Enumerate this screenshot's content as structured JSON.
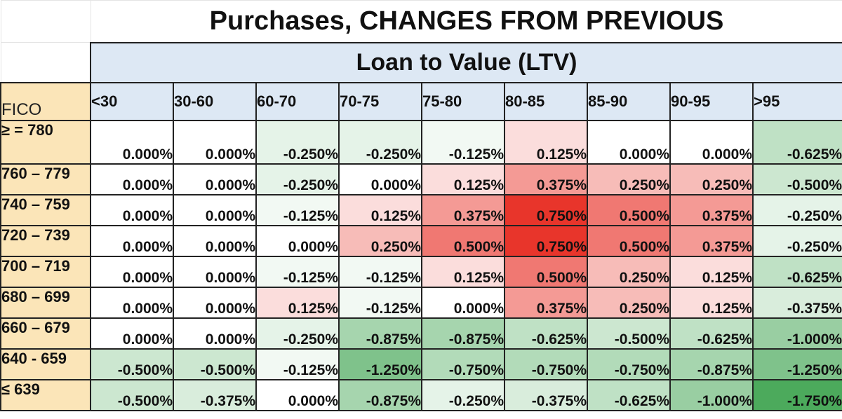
{
  "title": "Purchases, CHANGES FROM PREVIOUS",
  "subtitle": "Loan to Value (LTV)",
  "fico_label": "FICO",
  "columns": [
    "<30",
    "30-60",
    "60-70",
    "70-75",
    "75-80",
    "80-85",
    "85-90",
    "90-95",
    ">95"
  ],
  "rows": [
    {
      "label": "≥ = 780",
      "values": [
        0.0,
        0.0,
        -0.25,
        -0.25,
        -0.125,
        0.125,
        0.0,
        0.0,
        -0.625
      ]
    },
    {
      "label": "760 – 779",
      "values": [
        0.0,
        0.0,
        -0.25,
        0.0,
        0.125,
        0.375,
        0.25,
        0.25,
        -0.5
      ]
    },
    {
      "label": "740 – 759",
      "values": [
        0.0,
        0.0,
        -0.125,
        0.125,
        0.375,
        0.75,
        0.5,
        0.375,
        -0.25
      ]
    },
    {
      "label": "720 – 739",
      "values": [
        0.0,
        0.0,
        0.0,
        0.25,
        0.5,
        0.75,
        0.5,
        0.375,
        -0.25
      ]
    },
    {
      "label": "700 – 719",
      "values": [
        0.0,
        0.0,
        -0.125,
        -0.125,
        0.125,
        0.5,
        0.25,
        0.125,
        -0.625
      ]
    },
    {
      "label": "680 – 699",
      "values": [
        0.0,
        0.0,
        0.125,
        -0.125,
        0.0,
        0.375,
        0.25,
        0.125,
        -0.375
      ]
    },
    {
      "label": "660 – 679",
      "values": [
        0.0,
        0.0,
        -0.25,
        -0.875,
        -0.875,
        -0.625,
        -0.5,
        -0.625,
        -1.0
      ]
    },
    {
      "label": "640 - 659",
      "values": [
        -0.5,
        -0.5,
        -0.125,
        -1.25,
        -0.75,
        -0.75,
        -0.75,
        -0.875,
        -1.25
      ]
    },
    {
      "label": "≤ 639",
      "values": [
        -0.5,
        -0.375,
        0.0,
        -0.875,
        -0.25,
        -0.375,
        -0.625,
        -1.0,
        -1.75
      ]
    }
  ],
  "colors": {
    "positive_max": "#e8352b",
    "negative_max": "#4caa5c",
    "neutral": "#ffffff",
    "header_blue": "#dde8f4",
    "header_tan": "#fbe5b8"
  }
}
